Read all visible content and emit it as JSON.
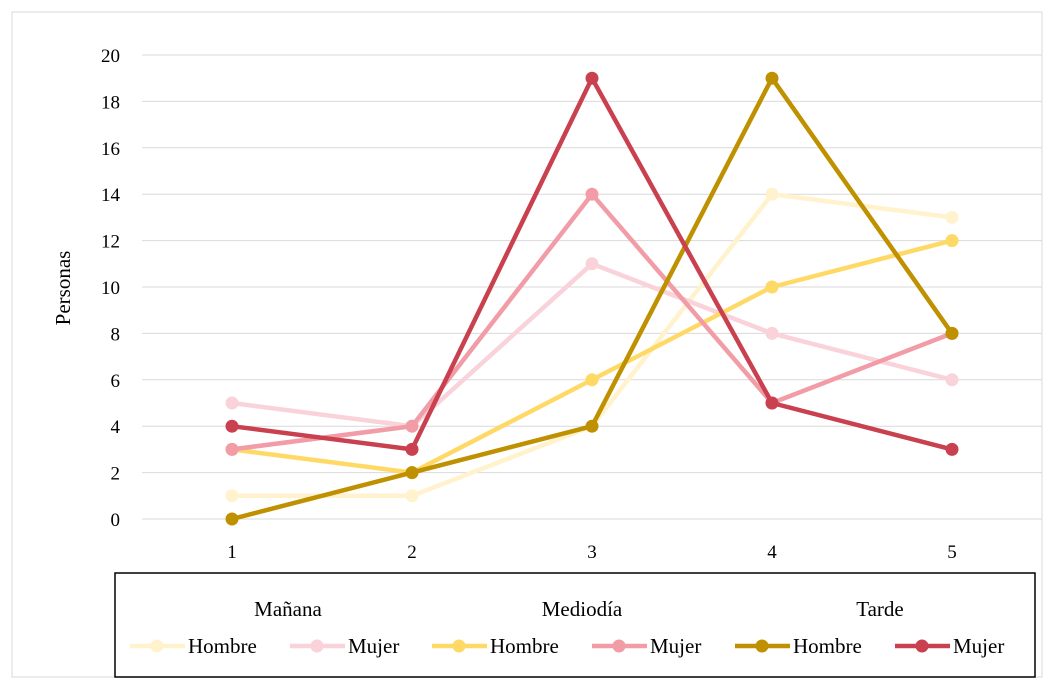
{
  "chart_data": {
    "type": "line",
    "ylabel": "Personas",
    "xlabel": "",
    "x": [
      1,
      2,
      3,
      4,
      5
    ],
    "x_tick_labels": [
      "1",
      "2",
      "3",
      "4",
      "5"
    ],
    "ylim": [
      0,
      20
    ],
    "y_ticks": [
      0,
      2,
      4,
      6,
      8,
      10,
      12,
      14,
      16,
      18,
      20
    ],
    "y_tick_labels": [
      "0",
      "2",
      "4",
      "6",
      "8",
      "10",
      "12",
      "14",
      "16",
      "18",
      "20"
    ],
    "grid": true,
    "legend_position": "bottom",
    "legend_groups": [
      "Mañana",
      "Mediodía",
      "Tarde"
    ],
    "series": [
      {
        "name": "Hombre",
        "group": "Mañana",
        "color": "#FFF2CC",
        "values": [
          1,
          1,
          4,
          14,
          13
        ]
      },
      {
        "name": "Mujer",
        "group": "Mañana",
        "color": "#F9D3D9",
        "values": [
          5,
          4,
          11,
          8,
          6
        ]
      },
      {
        "name": "Hombre",
        "group": "Mediodía",
        "color": "#FFD966",
        "values": [
          3,
          2,
          6,
          10,
          12
        ]
      },
      {
        "name": "Mujer",
        "group": "Mediodía",
        "color": "#F19CA6",
        "values": [
          3,
          4,
          14,
          5,
          8
        ]
      },
      {
        "name": "Hombre",
        "group": "Tarde",
        "color": "#BF9000",
        "values": [
          0,
          2,
          4,
          19,
          8
        ]
      },
      {
        "name": "Mujer",
        "group": "Tarde",
        "color": "#C9404F",
        "values": [
          4,
          3,
          19,
          5,
          3
        ]
      }
    ]
  }
}
